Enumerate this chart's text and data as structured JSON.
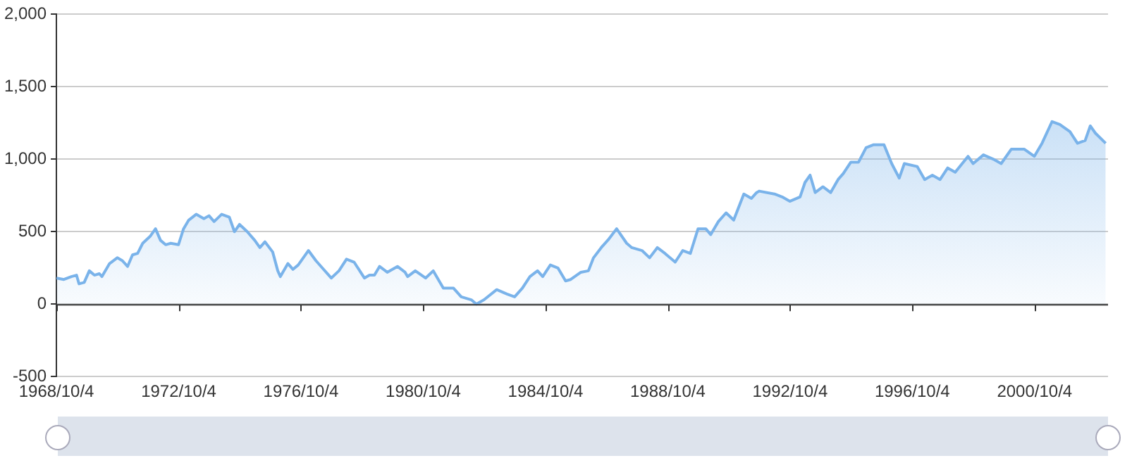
{
  "chart_data": {
    "type": "area",
    "grid": "y",
    "x": [
      "1968-10-04",
      "1969-01",
      "1969-04",
      "1969-06",
      "1969-07",
      "1969-09",
      "1969-11",
      "1970-01",
      "1970-03",
      "1970-04",
      "1970-07",
      "1970-10",
      "1970-12",
      "1971-02",
      "1971-04",
      "1971-06",
      "1971-08",
      "1971-11",
      "1972-01",
      "1972-03",
      "1972-05",
      "1972-07",
      "1972-10",
      "1972-12",
      "1973-02",
      "1973-05",
      "1973-08",
      "1973-10",
      "1973-12",
      "1974-03",
      "1974-06",
      "1974-08",
      "1974-10",
      "1975-01",
      "1975-04",
      "1975-06",
      "1975-08",
      "1975-11",
      "1976-01",
      "1976-02",
      "1976-05",
      "1976-07",
      "1976-09",
      "1976-11",
      "1977-01",
      "1977-04",
      "1977-06",
      "1977-10",
      "1978-01",
      "1978-04",
      "1978-07",
      "1978-11",
      "1979-01",
      "1979-03",
      "1979-05",
      "1979-08",
      "1979-12",
      "1980-03",
      "1980-04",
      "1980-07",
      "1980-11",
      "1981-02",
      "1981-06",
      "1981-10",
      "1982-01",
      "1982-05",
      "1982-07",
      "1982-10",
      "1983-03",
      "1983-07",
      "1983-10",
      "1984-01",
      "1984-04",
      "1984-07",
      "1984-09",
      "1984-12",
      "1985-03",
      "1985-06",
      "1985-08",
      "1985-12",
      "1986-03",
      "1986-05",
      "1986-08",
      "1986-11",
      "1987-02",
      "1987-06",
      "1987-08",
      "1987-12",
      "1988-03",
      "1988-06",
      "1988-09",
      "1989-01",
      "1989-04",
      "1989-07",
      "1989-10",
      "1990-01",
      "1990-03",
      "1990-06",
      "1990-09",
      "1990-12",
      "1991-04",
      "1991-07",
      "1991-09",
      "1991-10",
      "1992-04",
      "1992-07",
      "1992-10",
      "1993-02",
      "1993-04",
      "1993-06",
      "1993-08",
      "1993-11",
      "1994-02",
      "1994-05",
      "1994-07",
      "1994-10",
      "1995-01",
      "1995-04",
      "1995-07",
      "1995-11",
      "1996-02",
      "1996-05",
      "1996-07",
      "1996-12",
      "1997-03",
      "1997-06",
      "1997-09",
      "1997-12",
      "1998-03",
      "1998-08",
      "1998-10",
      "1999-02",
      "1999-06",
      "1999-09",
      "2000-01",
      "2000-06",
      "2000-10",
      "2001-01",
      "2001-05",
      "2001-08",
      "2001-12",
      "2002-03",
      "2002-06",
      "2002-08",
      "2002-10",
      "2003-02"
    ],
    "series": [
      {
        "color": "#7ab3ea",
        "values": [
          180,
          170,
          190,
          200,
          140,
          150,
          230,
          200,
          210,
          190,
          280,
          320,
          300,
          260,
          340,
          350,
          420,
          470,
          520,
          440,
          410,
          420,
          410,
          520,
          580,
          620,
          590,
          610,
          570,
          620,
          600,
          500,
          550,
          500,
          440,
          390,
          430,
          360,
          230,
          190,
          280,
          240,
          270,
          320,
          370,
          300,
          260,
          180,
          230,
          310,
          290,
          180,
          200,
          200,
          260,
          220,
          260,
          220,
          190,
          230,
          180,
          230,
          110,
          110,
          50,
          30,
          0,
          30,
          100,
          70,
          50,
          110,
          190,
          230,
          190,
          270,
          250,
          160,
          170,
          220,
          230,
          320,
          390,
          450,
          520,
          420,
          390,
          370,
          320,
          390,
          350,
          290,
          370,
          350,
          520,
          520,
          480,
          570,
          630,
          580,
          760,
          730,
          770,
          780,
          760,
          740,
          710,
          740,
          840,
          890,
          770,
          810,
          770,
          860,
          900,
          980,
          980,
          1080,
          1100,
          1100,
          970,
          870,
          970,
          950,
          860,
          890,
          860,
          940,
          910,
          1020,
          970,
          1030,
          1000,
          970,
          1070,
          1070,
          1020,
          1110,
          1260,
          1240,
          1190,
          1110,
          1130,
          1230,
          1180,
          1110
        ]
      }
    ],
    "xlim": [
      "1968-10-04",
      "2003-03-01"
    ],
    "xticks": [
      {
        "value": "1968-10-04",
        "label": "1968/10/4"
      },
      {
        "value": "1972-10-04",
        "label": "1972/10/4"
      },
      {
        "value": "1976-10-04",
        "label": "1976/10/4"
      },
      {
        "value": "1980-10-04",
        "label": "1980/10/4"
      },
      {
        "value": "1984-10-04",
        "label": "1984/10/4"
      },
      {
        "value": "1988-10-04",
        "label": "1988/10/4"
      },
      {
        "value": "1992-10-04",
        "label": "1992/10/4"
      },
      {
        "value": "1996-10-04",
        "label": "1996/10/4"
      },
      {
        "value": "2000-10-04",
        "label": "2000/10/4"
      }
    ],
    "ylim": [
      -500,
      2000
    ],
    "yticks": [
      -500,
      0,
      500,
      {
        "value": 1000,
        "label": "1,000"
      },
      {
        "value": 1500,
        "label": "1,500"
      },
      {
        "value": 2000,
        "label": "2,000"
      }
    ]
  }
}
